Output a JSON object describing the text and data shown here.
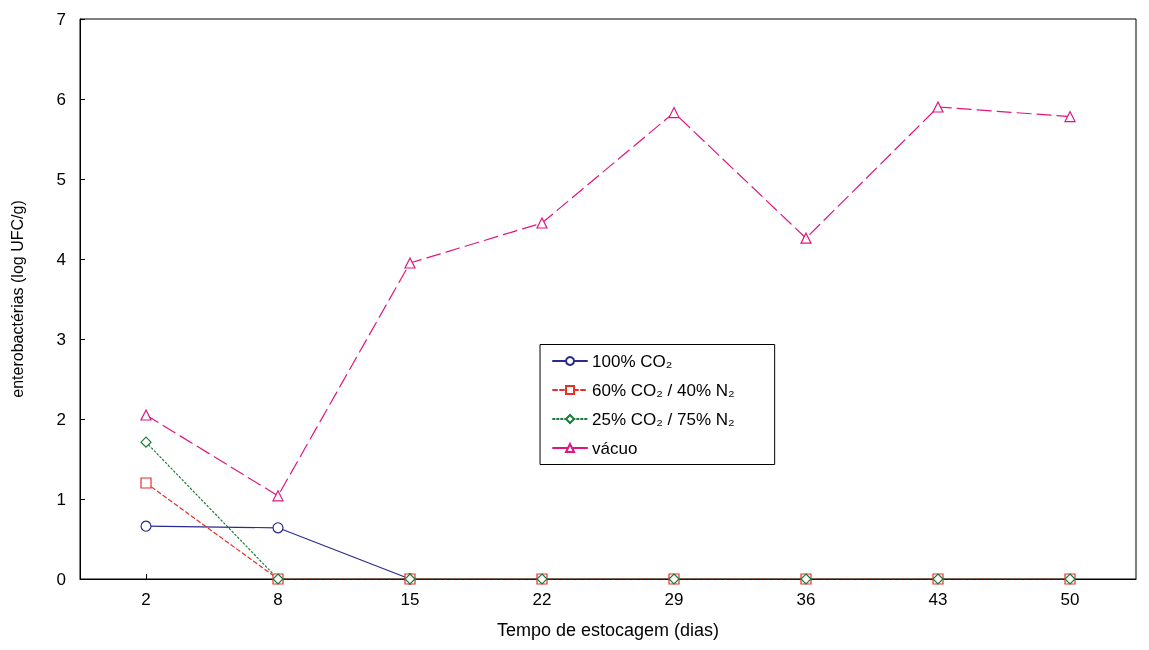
{
  "chart_data": {
    "type": "line",
    "xlabel": "Tempo de estocagem (dias)",
    "ylabel": "enterobactérias (log UFC/g)",
    "categories": [
      "2",
      "8",
      "15",
      "22",
      "29",
      "36",
      "43",
      "50"
    ],
    "ylim": [
      0,
      7
    ],
    "yticks": [
      0,
      1,
      2,
      3,
      4,
      5,
      6,
      7
    ],
    "grid": false,
    "legend": "center",
    "series": [
      {
        "name": "100% CO₂",
        "color": "#2b2b8f",
        "marker": "circle",
        "line_style": "solid",
        "values": [
          0.66,
          0.64,
          0,
          null,
          null,
          null,
          null,
          null
        ]
      },
      {
        "name": "60% CO₂ / 40% N₂",
        "color": "#e8302a",
        "marker": "square",
        "line_style": "dashed",
        "values": [
          1.2,
          0,
          0,
          0,
          0,
          0,
          0,
          0
        ]
      },
      {
        "name": "25% CO₂ / 75% N₂",
        "color": "#1a7a3a",
        "marker": "diamond",
        "line_style": "dotted",
        "values": [
          1.71,
          0,
          0,
          0,
          0,
          0,
          0,
          0
        ]
      },
      {
        "name": "vácuo",
        "color": "#e0157f",
        "marker": "triangle",
        "line_style": "longdash",
        "values": [
          2.05,
          1.04,
          3.95,
          4.45,
          5.83,
          4.26,
          5.9,
          5.78
        ]
      }
    ]
  }
}
